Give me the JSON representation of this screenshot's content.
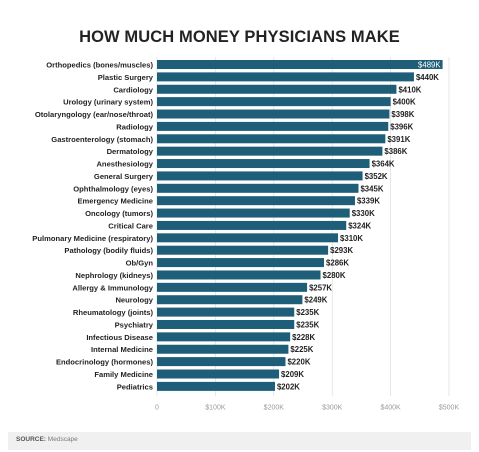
{
  "title": "HOW MUCH MONEY PHYSICIANS MAKE",
  "source": {
    "prefix": "SOURCE:",
    "name": "Medscape"
  },
  "colors": {
    "bar": "#1e5e78",
    "grid": "#d7d7d7",
    "text": "#222222"
  },
  "chart_data": {
    "type": "bar",
    "orientation": "horizontal",
    "title": "HOW MUCH MONEY PHYSICIANS MAKE",
    "categories": [
      "Orthopedics (bones/muscles)",
      "Plastic Surgery",
      "Cardiology",
      "Urology (urinary system)",
      "Otolaryngology (ear/nose/throat)",
      "Radiology",
      "Gastroenterology (stomach)",
      "Dermatology",
      "Anesthesiology",
      "General Surgery",
      "Ophthalmology (eyes)",
      "Emergency Medicine",
      "Oncology (tumors)",
      "Critical Care",
      "Pulmonary Medicine (respiratory)",
      "Pathology (bodily fluids)",
      "Ob/Gyn",
      "Nephrology (kidneys)",
      "Allergy & Immunology",
      "Neurology",
      "Rheumatology (joints)",
      "Psychiatry",
      "Infectious Disease",
      "Internal Medicine",
      "Endocrinology (hormones)",
      "Family Medicine",
      "Pediatrics"
    ],
    "values": [
      489,
      440,
      410,
      400,
      398,
      396,
      391,
      386,
      364,
      352,
      345,
      339,
      330,
      324,
      310,
      293,
      286,
      280,
      257,
      249,
      235,
      235,
      228,
      225,
      220,
      209,
      202
    ],
    "value_labels": [
      "$489K",
      "$440K",
      "$410K",
      "$400K",
      "$398K",
      "$396K",
      "$391K",
      "$386K",
      "$364K",
      "$352K",
      "$345K",
      "$339K",
      "$330K",
      "$324K",
      "$310K",
      "$293K",
      "$286K",
      "$280K",
      "$257K",
      "$249K",
      "$235K",
      "$235K",
      "$228K",
      "$225K",
      "$220K",
      "$209K",
      "$202K"
    ],
    "units": "thousands of USD",
    "xlim": [
      0,
      500
    ],
    "xticks": [
      0,
      100,
      200,
      300,
      400,
      500
    ],
    "xtick_labels": [
      "0",
      "$100K",
      "$200K",
      "$300K",
      "$400K",
      "$500K"
    ],
    "grid": true,
    "legend": "none"
  }
}
